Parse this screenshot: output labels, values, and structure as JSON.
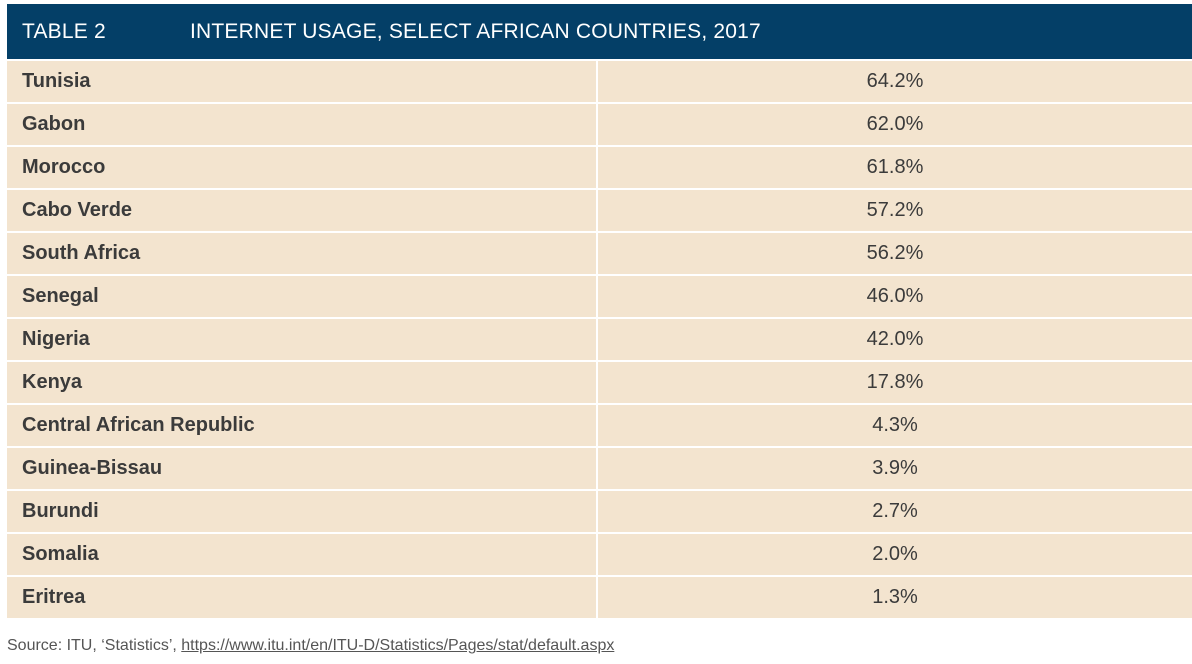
{
  "table": {
    "number": "TABLE 2",
    "title": "INTERNET USAGE, SELECT AFRICAN COUNTRIES, 2017",
    "rows": [
      {
        "country": "Tunisia",
        "value": "64.2%"
      },
      {
        "country": "Gabon",
        "value": "62.0%"
      },
      {
        "country": "Morocco",
        "value": "61.8%"
      },
      {
        "country": "Cabo Verde",
        "value": "57.2%"
      },
      {
        "country": "South Africa",
        "value": "56.2%"
      },
      {
        "country": "Senegal",
        "value": "46.0%"
      },
      {
        "country": "Nigeria",
        "value": "42.0%"
      },
      {
        "country": "Kenya",
        "value": "17.8%"
      },
      {
        "country": "Central African Republic",
        "value": "4.3%"
      },
      {
        "country": "Guinea-Bissau",
        "value": "3.9%"
      },
      {
        "country": "Burundi",
        "value": "2.7%"
      },
      {
        "country": "Somalia",
        "value": "2.0%"
      },
      {
        "country": "Eritrea",
        "value": "1.3%"
      }
    ]
  },
  "source": {
    "prefix": "Source: ITU, ‘Statistics’, ",
    "link": "https://www.itu.int/en/ITU-D/Statistics/Pages/stat/default.aspx"
  },
  "colors": {
    "header": "#043f67",
    "row": "#f3e4cf"
  }
}
